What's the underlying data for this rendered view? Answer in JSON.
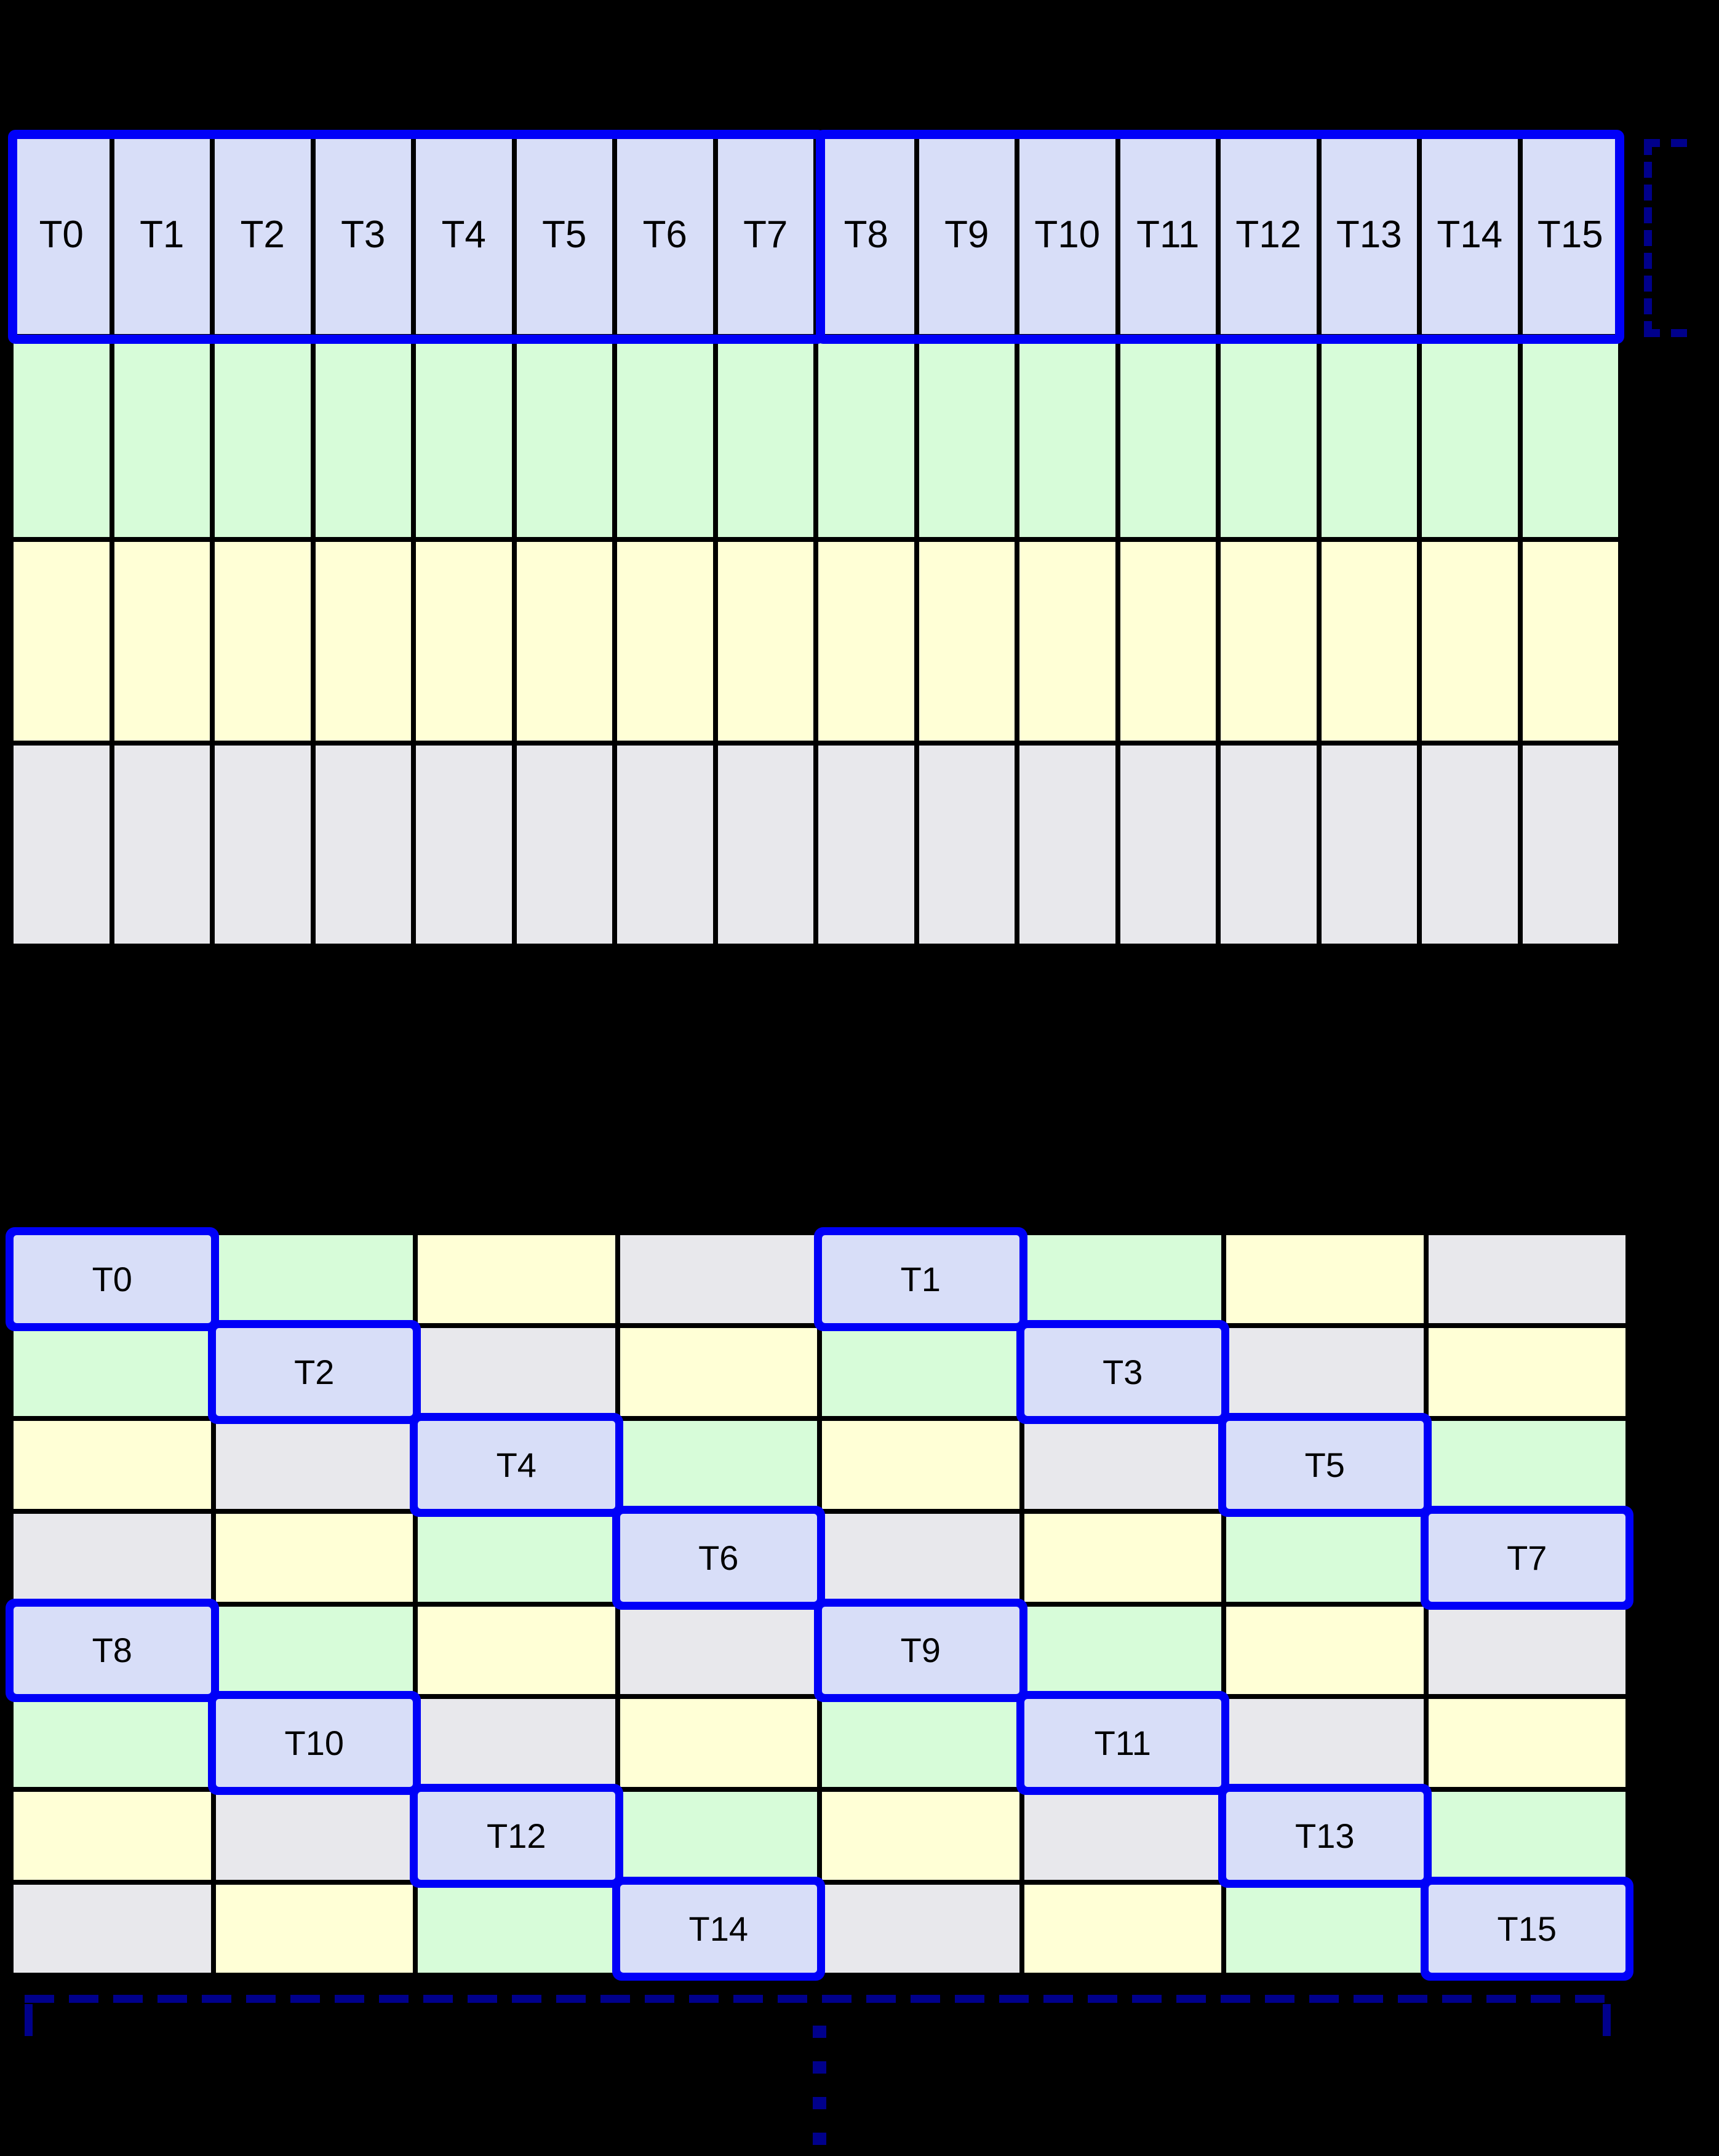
{
  "colors": {
    "background": "#000000",
    "thread_fill": "#d8def8",
    "mem_green": "#d7fcd9",
    "mem_yellow": "#ffffd6",
    "mem_gray": "#e8e8ec",
    "highlight_blue": "#0000f8",
    "bracket_navy": "#00008b",
    "grid_line": "#000000",
    "label_color": "#000000"
  },
  "top_grid": {
    "columns": 16,
    "thread_labels": [
      "T0",
      "T1",
      "T2",
      "T3",
      "T4",
      "T5",
      "T6",
      "T7",
      "T8",
      "T9",
      "T10",
      "T11",
      "T12",
      "T13",
      "T14",
      "T15"
    ],
    "thread_groups": [
      [
        0,
        7
      ],
      [
        8,
        15
      ]
    ],
    "memory_row_colors": [
      "green",
      "yellow",
      "gray"
    ]
  },
  "bottom_grid": {
    "columns": 8,
    "rows": [
      [
        "T0",
        "green",
        "yellow",
        "gray",
        "T1",
        "green",
        "yellow",
        "gray"
      ],
      [
        "green",
        "T2",
        "gray",
        "yellow",
        "green",
        "T3",
        "gray",
        "yellow"
      ],
      [
        "yellow",
        "gray",
        "T4",
        "green",
        "yellow",
        "gray",
        "T5",
        "green"
      ],
      [
        "gray",
        "yellow",
        "green",
        "T6",
        "gray",
        "yellow",
        "green",
        "T7"
      ],
      [
        "T8",
        "green",
        "yellow",
        "gray",
        "T9",
        "green",
        "yellow",
        "gray"
      ],
      [
        "green",
        "T10",
        "gray",
        "yellow",
        "green",
        "T11",
        "gray",
        "yellow"
      ],
      [
        "yellow",
        "gray",
        "T12",
        "green",
        "yellow",
        "gray",
        "T13",
        "green"
      ],
      [
        "gray",
        "yellow",
        "green",
        "T14",
        "gray",
        "yellow",
        "green",
        "T15"
      ]
    ]
  },
  "annotations": {
    "warp_bracket_side": "right",
    "span_line_position": "bottom",
    "continuation_dots": 4
  }
}
